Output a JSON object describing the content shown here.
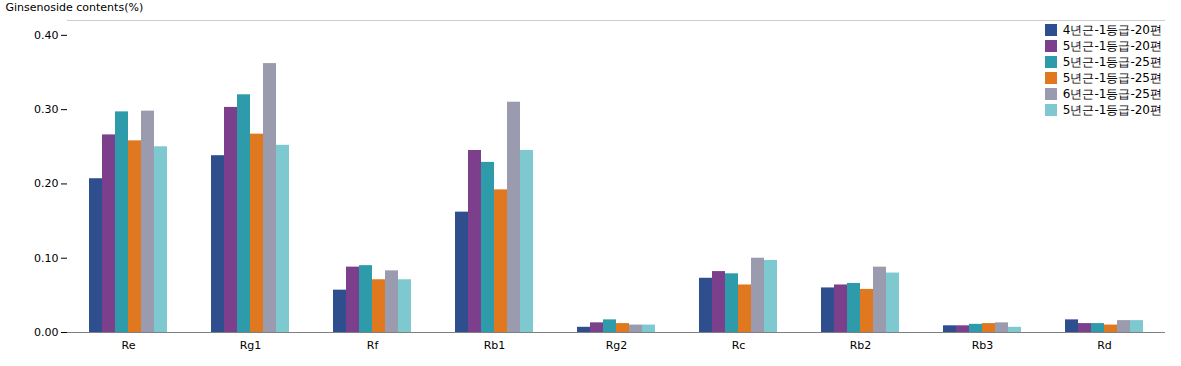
{
  "chart_data": {
    "type": "bar",
    "categories": [
      "Re",
      "Rg1",
      "Rf",
      "Rb1",
      "Rg2",
      "Rc",
      "Rb2",
      "Rb3",
      "Rd"
    ],
    "series": [
      {
        "name": "4년근-1등급-20편",
        "color": "#2E4E8E",
        "values": [
          0.207,
          0.238,
          0.057,
          0.162,
          0.007,
          0.073,
          0.06,
          0.009,
          0.017
        ]
      },
      {
        "name": "5년근-1등급-20편",
        "color": "#7B3F8C",
        "values": [
          0.266,
          0.303,
          0.088,
          0.245,
          0.013,
          0.082,
          0.064,
          0.009,
          0.012
        ]
      },
      {
        "name": "5년근-1등급-25편",
        "color": "#2E9BAA",
        "values": [
          0.297,
          0.32,
          0.09,
          0.229,
          0.017,
          0.079,
          0.066,
          0.011,
          0.012
        ]
      },
      {
        "name": "5년근-1등급-25편",
        "color": "#E07820",
        "values": [
          0.258,
          0.267,
          0.071,
          0.192,
          0.012,
          0.064,
          0.058,
          0.012,
          0.01
        ]
      },
      {
        "name": "6년근-1등급-25편",
        "color": "#9B9BB0",
        "values": [
          0.298,
          0.362,
          0.083,
          0.31,
          0.01,
          0.1,
          0.088,
          0.013,
          0.016
        ]
      },
      {
        "name": "5년근-1등급-20편",
        "color": "#7EC8D0",
        "values": [
          0.25,
          0.252,
          0.071,
          0.245,
          0.01,
          0.097,
          0.08,
          0.007,
          0.016
        ]
      }
    ],
    "ylabel": "Ginsenoside contents(%)",
    "ylim": [
      0.0,
      0.42
    ],
    "yticks": [
      {
        "value": 0.0,
        "label": "0.00"
      },
      {
        "value": 0.1,
        "label": "0.10"
      },
      {
        "value": 0.2,
        "label": "0.20"
      },
      {
        "value": 0.3,
        "label": "0.30"
      },
      {
        "value": 0.4,
        "label": "0.40"
      }
    ],
    "legend": "upper right",
    "grid": false
  }
}
